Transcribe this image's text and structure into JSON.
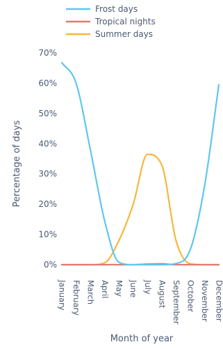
{
  "chart_data": {
    "type": "line",
    "title": "",
    "xlabel": "Month of year",
    "ylabel": "Percentage of days",
    "categories": [
      "January",
      "February",
      "March",
      "April",
      "May",
      "June",
      "July",
      "August",
      "September",
      "October",
      "November",
      "December"
    ],
    "y_ticks": [
      "0%",
      "10%",
      "20%",
      "30%",
      "40%",
      "50%",
      "60%",
      "70%"
    ],
    "ylim": [
      0,
      70
    ],
    "grid": false,
    "legend_position": "top",
    "series": [
      {
        "name": "Frost days",
        "color": "#5fc6f0",
        "values": [
          66.8,
          60,
          38,
          14.5,
          0.8,
          0,
          0,
          0,
          0.4,
          5,
          26,
          59.5
        ]
      },
      {
        "name": "Tropical nights",
        "color": "#e07a72",
        "values": [
          0,
          0,
          0,
          0,
          0,
          0,
          0.2,
          0.3,
          0,
          0,
          0,
          0
        ]
      },
      {
        "name": "Summer days",
        "color": "#f6b73c",
        "values": [
          0,
          0,
          0,
          0.6,
          8,
          20,
          36.5,
          33,
          8,
          0.3,
          0,
          0
        ]
      }
    ]
  }
}
